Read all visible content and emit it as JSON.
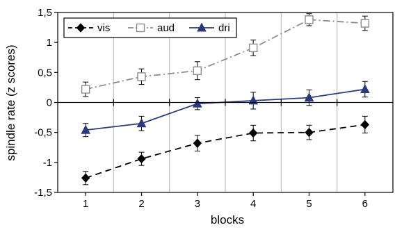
{
  "chart_data": {
    "type": "line",
    "title": "",
    "xlabel": "blocks",
    "ylabel": "spindle rate (z scores)",
    "x": [
      1,
      2,
      3,
      4,
      5,
      6
    ],
    "xticks": [
      "1",
      "2",
      "3",
      "4",
      "5",
      "6"
    ],
    "xlim": [
      0.5,
      6.5
    ],
    "ylim": [
      -1.5,
      1.5
    ],
    "yticks": [
      {
        "value": 1.5,
        "label": "1,5"
      },
      {
        "value": 1.0,
        "label": "1"
      },
      {
        "value": 0.5,
        "label": "0,5"
      },
      {
        "value": 0.0,
        "label": "0"
      },
      {
        "value": -0.5,
        "label": "-0,5"
      },
      {
        "value": -1.0,
        "label": "-1"
      },
      {
        "value": -1.5,
        "label": "-1,5"
      }
    ],
    "grid": "vertical",
    "legend": "top-left",
    "series": [
      {
        "name": "vis",
        "color": "#000000",
        "marker": "diamond-filled",
        "line": "dashed",
        "values": [
          -1.26,
          -0.94,
          -0.68,
          -0.51,
          -0.5,
          -0.37
        ],
        "errors": [
          0.11,
          0.11,
          0.13,
          0.13,
          0.12,
          0.14
        ]
      },
      {
        "name": "aud",
        "color": "#8c8c8c",
        "marker": "square-open",
        "line": "dash-dot",
        "values": [
          0.22,
          0.43,
          0.53,
          0.91,
          1.38,
          1.32
        ],
        "errors": [
          0.12,
          0.13,
          0.15,
          0.13,
          0.1,
          0.12
        ]
      },
      {
        "name": "dri",
        "color": "#2b3a7d",
        "marker": "triangle-filled",
        "line": "solid",
        "values": [
          -0.46,
          -0.35,
          -0.02,
          0.03,
          0.08,
          0.22
        ],
        "errors": [
          0.11,
          0.12,
          0.1,
          0.14,
          0.13,
          0.13
        ]
      }
    ]
  }
}
